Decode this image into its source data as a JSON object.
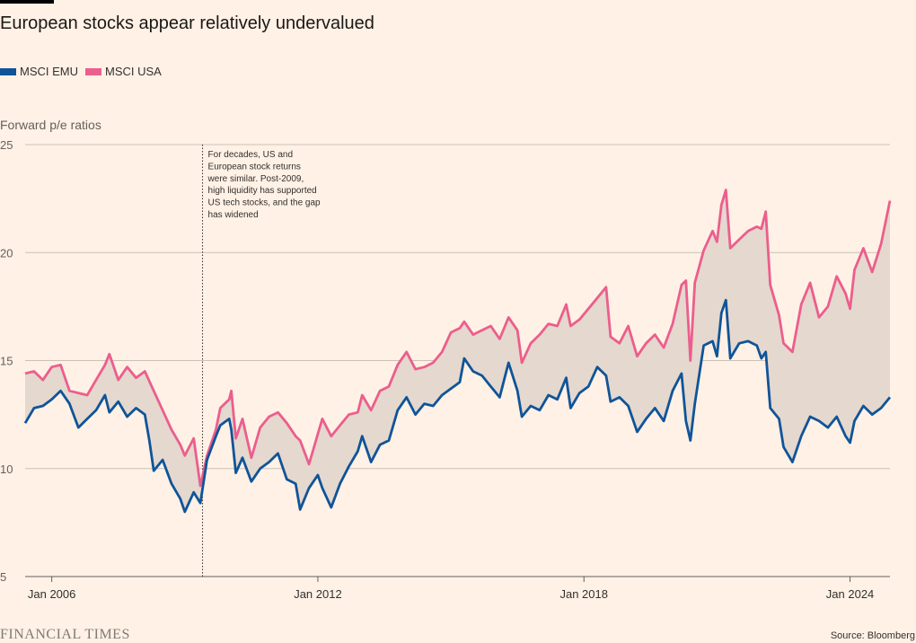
{
  "title": "European stocks appear relatively undervalued",
  "subtitle": "Forward p/e ratios",
  "source": "Source: Bloomberg",
  "brand": "FINANCIAL TIMES",
  "colors": {
    "background": "#fff1e5",
    "emu": "#0f5499",
    "usa": "#eb5e8d",
    "fill": "#e5d8ce",
    "grid": "#ccc1b7"
  },
  "chart_data": {
    "type": "line",
    "title": "European stocks appear relatively undervalued",
    "ylabel": "Forward p/e ratios",
    "xlabel": "",
    "ylim": [
      5,
      25
    ],
    "yticks": [
      5,
      10,
      15,
      20,
      25
    ],
    "xticks": [
      {
        "label": "Jan 2006",
        "x": 2006.0
      },
      {
        "label": "Jan 2012",
        "x": 2012.0
      },
      {
        "label": "Jan 2018",
        "x": 2018.0
      },
      {
        "label": "Jan 2024",
        "x": 2024.0
      }
    ],
    "xlim": [
      2005.4,
      2024.9
    ],
    "legend_position": "top-left",
    "grid": true,
    "annotation": {
      "x": 2009.4,
      "text_lines": [
        "For decades, US and",
        "European stock returns",
        "were similar. Post-2009,",
        "high liquidity has supported",
        "US tech stocks, and the gap",
        "has widened"
      ]
    },
    "series": [
      {
        "name": "MSCI EMU",
        "points": [
          [
            2005.4,
            12.1
          ],
          [
            2005.6,
            12.8
          ],
          [
            2005.8,
            12.9
          ],
          [
            2006.0,
            13.2
          ],
          [
            2006.2,
            13.6
          ],
          [
            2006.4,
            13.0
          ],
          [
            2006.6,
            11.9
          ],
          [
            2006.8,
            12.3
          ],
          [
            2007.0,
            12.7
          ],
          [
            2007.2,
            13.4
          ],
          [
            2007.3,
            12.6
          ],
          [
            2007.5,
            13.1
          ],
          [
            2007.7,
            12.4
          ],
          [
            2007.9,
            12.8
          ],
          [
            2008.1,
            12.5
          ],
          [
            2008.2,
            11.3
          ],
          [
            2008.3,
            9.9
          ],
          [
            2008.5,
            10.4
          ],
          [
            2008.7,
            9.3
          ],
          [
            2008.9,
            8.6
          ],
          [
            2009.0,
            8.0
          ],
          [
            2009.2,
            8.9
          ],
          [
            2009.35,
            8.4
          ],
          [
            2009.5,
            10.4
          ],
          [
            2009.7,
            11.5
          ],
          [
            2009.8,
            12.0
          ],
          [
            2010.0,
            12.3
          ],
          [
            2010.05,
            11.8
          ],
          [
            2010.15,
            9.8
          ],
          [
            2010.3,
            10.5
          ],
          [
            2010.5,
            9.4
          ],
          [
            2010.7,
            10.0
          ],
          [
            2010.9,
            10.3
          ],
          [
            2011.1,
            10.7
          ],
          [
            2011.3,
            9.5
          ],
          [
            2011.5,
            9.3
          ],
          [
            2011.6,
            8.1
          ],
          [
            2011.8,
            9.1
          ],
          [
            2012.0,
            9.7
          ],
          [
            2012.1,
            9.1
          ],
          [
            2012.3,
            8.2
          ],
          [
            2012.5,
            9.3
          ],
          [
            2012.7,
            10.1
          ],
          [
            2012.9,
            10.8
          ],
          [
            2013.0,
            11.5
          ],
          [
            2013.2,
            10.3
          ],
          [
            2013.4,
            11.1
          ],
          [
            2013.6,
            11.3
          ],
          [
            2013.8,
            12.7
          ],
          [
            2014.0,
            13.3
          ],
          [
            2014.2,
            12.5
          ],
          [
            2014.4,
            13.0
          ],
          [
            2014.6,
            12.9
          ],
          [
            2014.8,
            13.4
          ],
          [
            2015.0,
            13.7
          ],
          [
            2015.2,
            14.0
          ],
          [
            2015.3,
            15.1
          ],
          [
            2015.5,
            14.5
          ],
          [
            2015.7,
            14.3
          ],
          [
            2015.9,
            13.8
          ],
          [
            2016.1,
            13.3
          ],
          [
            2016.3,
            14.9
          ],
          [
            2016.5,
            13.6
          ],
          [
            2016.6,
            12.4
          ],
          [
            2016.8,
            12.9
          ],
          [
            2017.0,
            12.7
          ],
          [
            2017.2,
            13.4
          ],
          [
            2017.4,
            13.2
          ],
          [
            2017.6,
            14.2
          ],
          [
            2017.7,
            12.8
          ],
          [
            2017.9,
            13.5
          ],
          [
            2018.1,
            13.8
          ],
          [
            2018.3,
            14.7
          ],
          [
            2018.5,
            14.3
          ],
          [
            2018.6,
            13.1
          ],
          [
            2018.8,
            13.3
          ],
          [
            2019.0,
            12.9
          ],
          [
            2019.2,
            11.7
          ],
          [
            2019.4,
            12.3
          ],
          [
            2019.6,
            12.8
          ],
          [
            2019.8,
            12.2
          ],
          [
            2020.0,
            13.6
          ],
          [
            2020.2,
            14.4
          ],
          [
            2020.3,
            12.2
          ],
          [
            2020.4,
            11.3
          ],
          [
            2020.5,
            13.0
          ],
          [
            2020.7,
            15.7
          ],
          [
            2020.9,
            15.9
          ],
          [
            2021.0,
            15.2
          ],
          [
            2021.1,
            17.2
          ],
          [
            2021.2,
            17.8
          ],
          [
            2021.3,
            15.1
          ],
          [
            2021.5,
            15.8
          ],
          [
            2021.7,
            15.9
          ],
          [
            2021.9,
            15.7
          ],
          [
            2022.0,
            15.1
          ],
          [
            2022.1,
            15.4
          ],
          [
            2022.2,
            12.8
          ],
          [
            2022.4,
            12.3
          ],
          [
            2022.5,
            11.0
          ],
          [
            2022.7,
            10.3
          ],
          [
            2022.9,
            11.5
          ],
          [
            2023.1,
            12.4
          ],
          [
            2023.3,
            12.2
          ],
          [
            2023.5,
            11.9
          ],
          [
            2023.7,
            12.4
          ],
          [
            2023.9,
            11.5
          ],
          [
            2024.0,
            11.2
          ],
          [
            2024.1,
            12.2
          ],
          [
            2024.3,
            12.9
          ],
          [
            2024.5,
            12.5
          ],
          [
            2024.7,
            12.8
          ],
          [
            2024.9,
            13.3
          ]
        ]
      },
      {
        "name": "MSCI USA",
        "points": [
          [
            2005.4,
            14.4
          ],
          [
            2005.6,
            14.5
          ],
          [
            2005.8,
            14.1
          ],
          [
            2006.0,
            14.7
          ],
          [
            2006.2,
            14.8
          ],
          [
            2006.4,
            13.6
          ],
          [
            2006.6,
            13.5
          ],
          [
            2006.8,
            13.4
          ],
          [
            2007.0,
            14.1
          ],
          [
            2007.2,
            14.8
          ],
          [
            2007.3,
            15.3
          ],
          [
            2007.5,
            14.1
          ],
          [
            2007.7,
            14.7
          ],
          [
            2007.9,
            14.2
          ],
          [
            2008.1,
            14.5
          ],
          [
            2008.3,
            13.6
          ],
          [
            2008.5,
            12.7
          ],
          [
            2008.7,
            11.8
          ],
          [
            2008.9,
            11.1
          ],
          [
            2009.0,
            10.6
          ],
          [
            2009.2,
            11.4
          ],
          [
            2009.35,
            9.2
          ],
          [
            2009.5,
            10.6
          ],
          [
            2009.7,
            11.8
          ],
          [
            2009.8,
            12.8
          ],
          [
            2010.0,
            13.2
          ],
          [
            2010.05,
            13.6
          ],
          [
            2010.15,
            11.4
          ],
          [
            2010.3,
            12.3
          ],
          [
            2010.5,
            10.5
          ],
          [
            2010.7,
            11.9
          ],
          [
            2010.9,
            12.4
          ],
          [
            2011.1,
            12.6
          ],
          [
            2011.3,
            12.1
          ],
          [
            2011.5,
            11.5
          ],
          [
            2011.6,
            11.3
          ],
          [
            2011.8,
            10.2
          ],
          [
            2012.0,
            11.6
          ],
          [
            2012.1,
            12.3
          ],
          [
            2012.3,
            11.5
          ],
          [
            2012.5,
            12.0
          ],
          [
            2012.7,
            12.5
          ],
          [
            2012.9,
            12.6
          ],
          [
            2013.0,
            13.4
          ],
          [
            2013.2,
            12.7
          ],
          [
            2013.4,
            13.6
          ],
          [
            2013.6,
            13.8
          ],
          [
            2013.8,
            14.8
          ],
          [
            2014.0,
            15.4
          ],
          [
            2014.2,
            14.6
          ],
          [
            2014.4,
            14.7
          ],
          [
            2014.6,
            14.9
          ],
          [
            2014.8,
            15.4
          ],
          [
            2015.0,
            16.3
          ],
          [
            2015.2,
            16.5
          ],
          [
            2015.3,
            16.8
          ],
          [
            2015.5,
            16.2
          ],
          [
            2015.7,
            16.4
          ],
          [
            2015.9,
            16.6
          ],
          [
            2016.1,
            16.0
          ],
          [
            2016.3,
            17.0
          ],
          [
            2016.5,
            16.4
          ],
          [
            2016.6,
            14.9
          ],
          [
            2016.8,
            15.8
          ],
          [
            2017.0,
            16.2
          ],
          [
            2017.2,
            16.7
          ],
          [
            2017.4,
            16.6
          ],
          [
            2017.6,
            17.6
          ],
          [
            2017.7,
            16.6
          ],
          [
            2017.9,
            16.9
          ],
          [
            2018.1,
            17.4
          ],
          [
            2018.3,
            17.9
          ],
          [
            2018.5,
            18.4
          ],
          [
            2018.6,
            16.1
          ],
          [
            2018.8,
            15.8
          ],
          [
            2019.0,
            16.6
          ],
          [
            2019.2,
            15.2
          ],
          [
            2019.4,
            15.8
          ],
          [
            2019.6,
            16.2
          ],
          [
            2019.8,
            15.6
          ],
          [
            2020.0,
            16.7
          ],
          [
            2020.2,
            18.5
          ],
          [
            2020.3,
            18.7
          ],
          [
            2020.4,
            15.0
          ],
          [
            2020.5,
            18.6
          ],
          [
            2020.7,
            20.1
          ],
          [
            2020.9,
            21.0
          ],
          [
            2021.0,
            20.5
          ],
          [
            2021.1,
            22.2
          ],
          [
            2021.2,
            22.9
          ],
          [
            2021.3,
            20.2
          ],
          [
            2021.5,
            20.6
          ],
          [
            2021.7,
            21.0
          ],
          [
            2021.9,
            21.2
          ],
          [
            2022.0,
            21.1
          ],
          [
            2022.1,
            21.9
          ],
          [
            2022.2,
            18.5
          ],
          [
            2022.4,
            17.1
          ],
          [
            2022.5,
            15.8
          ],
          [
            2022.7,
            15.4
          ],
          [
            2022.9,
            17.6
          ],
          [
            2023.1,
            18.6
          ],
          [
            2023.3,
            17.0
          ],
          [
            2023.5,
            17.5
          ],
          [
            2023.7,
            18.9
          ],
          [
            2023.9,
            18.1
          ],
          [
            2024.0,
            17.4
          ],
          [
            2024.1,
            19.2
          ],
          [
            2024.3,
            20.2
          ],
          [
            2024.5,
            19.1
          ],
          [
            2024.7,
            20.4
          ],
          [
            2024.9,
            22.4
          ]
        ]
      }
    ]
  }
}
